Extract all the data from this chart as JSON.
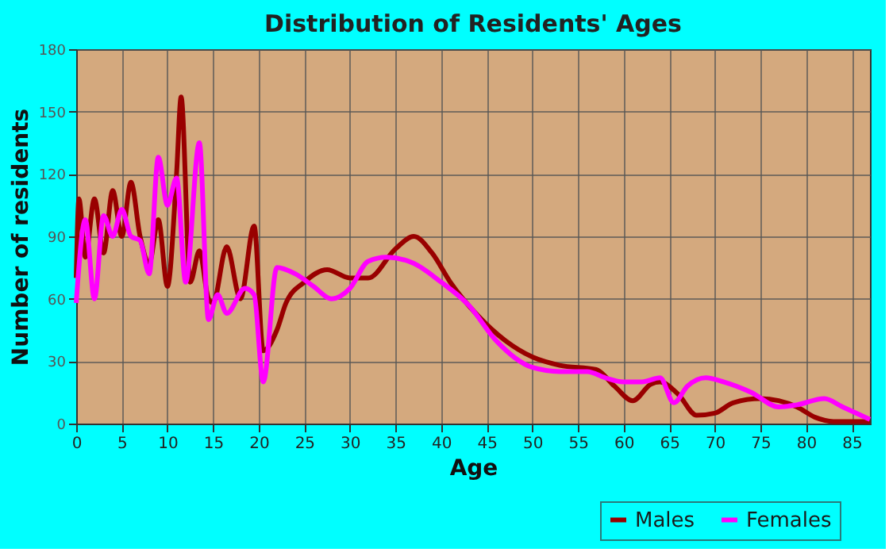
{
  "chart_data": {
    "type": "line",
    "title": "Distribution of Residents' Ages",
    "xlabel": "Age",
    "ylabel": "Number of residents",
    "xlim": [
      0,
      87
    ],
    "xticks": [
      0,
      5,
      10,
      15,
      20,
      25,
      30,
      35,
      40,
      45,
      50,
      55,
      60,
      65,
      70,
      75,
      80,
      85
    ],
    "ylim": [
      0,
      180
    ],
    "yticks": [
      0,
      30,
      60,
      90,
      120,
      150,
      180
    ],
    "grid": true,
    "legend": "bottom right",
    "marker": "none",
    "line_style": "solid",
    "series": [
      {
        "name": "Males",
        "color": "#990000",
        "x": [
          0,
          0.3,
          1,
          2,
          3,
          4,
          5,
          6,
          7,
          8,
          9,
          10,
          11,
          11.5,
          12.5,
          13.5,
          14.5,
          15,
          16.5,
          18,
          19.5,
          20.5,
          22,
          23,
          25,
          27.5,
          30,
          32,
          35,
          37,
          39,
          41,
          44,
          47,
          50,
          53,
          57,
          59,
          61,
          63,
          64,
          66,
          68,
          70,
          72,
          75,
          77,
          79,
          81,
          83,
          87
        ],
        "values": [
          70,
          108,
          80,
          108,
          82,
          112,
          90,
          116,
          90,
          77,
          98,
          66,
          120,
          157,
          68,
          83,
          60,
          58,
          85,
          60,
          95,
          35,
          45,
          58,
          68,
          74,
          70,
          70,
          84,
          90,
          82,
          68,
          52,
          40,
          32,
          28,
          26,
          18,
          11,
          19,
          20,
          14,
          4,
          5,
          10,
          12,
          11,
          8,
          3,
          1,
          1
        ]
      },
      {
        "name": "Females",
        "color": "#ff00ff",
        "x": [
          0,
          1,
          2,
          3,
          4,
          5,
          6,
          7,
          8,
          9,
          10,
          11,
          12,
          13.5,
          14.5,
          15.5,
          16.5,
          18.5,
          19.5,
          20.5,
          22,
          24,
          26,
          28,
          30,
          32,
          34,
          37,
          40,
          43,
          46,
          50,
          53,
          56,
          58,
          60,
          62,
          64,
          65.5,
          67,
          69,
          71,
          74,
          77,
          79,
          82,
          84,
          86,
          87
        ],
        "values": [
          58,
          98,
          60,
          100,
          90,
          103,
          90,
          88,
          72,
          128,
          105,
          118,
          68,
          135,
          50,
          62,
          53,
          65,
          62,
          20,
          75,
          72,
          66,
          60,
          65,
          78,
          80,
          77,
          68,
          57,
          40,
          27,
          25,
          25,
          22,
          20,
          20,
          22,
          10,
          18,
          22,
          20,
          15,
          8,
          9,
          12,
          8,
          4,
          2
        ]
      }
    ]
  }
}
